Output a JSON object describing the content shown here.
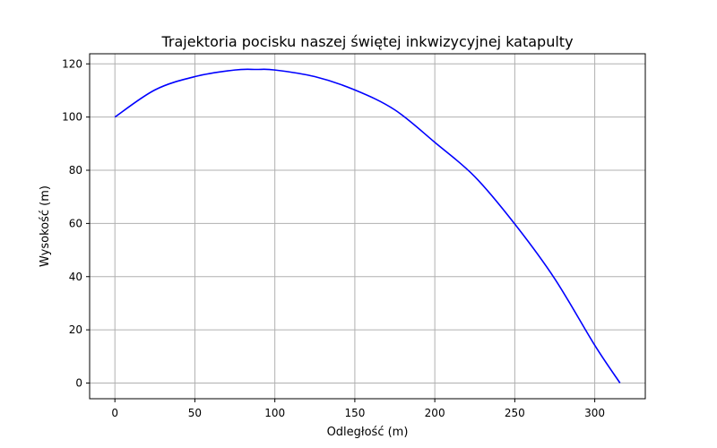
{
  "chart_data": {
    "type": "line",
    "title": "Trajektoria pocisku naszej świętej inkwizycyjnej katapulty",
    "xlabel": "Odległość (m)",
    "ylabel": "Wysokość (m)",
    "xlim": [
      -15.8,
      331.6
    ],
    "ylim": [
      -5.9,
      123.8
    ],
    "xticks": [
      0,
      50,
      100,
      150,
      200,
      250,
      300
    ],
    "yticks": [
      0,
      20,
      40,
      60,
      80,
      100,
      120
    ],
    "grid": true,
    "color": "#0000ff",
    "series": [
      {
        "x": [
          0,
          25,
          50,
          75,
          88.5,
          100,
          125,
          150,
          175,
          200,
          225,
          250,
          275,
          300,
          315.8
        ],
        "y": [
          100,
          110.2,
          115.2,
          117.7,
          117.9,
          117.7,
          115.2,
          110.2,
          102.7,
          90.5,
          77.6,
          59.8,
          39.2,
          14.2,
          0
        ]
      }
    ]
  }
}
